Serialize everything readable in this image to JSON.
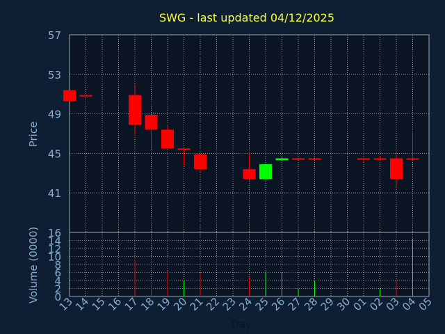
{
  "chart_data": {
    "type": "candlestick",
    "title": "SWG - last updated 04/12/2025",
    "xlabel": "Day",
    "price_ylabel": "Price",
    "volume_ylabel": "Volume (0000)",
    "x_ticks": [
      "13",
      "14",
      "15",
      "16",
      "17",
      "18",
      "19",
      "20",
      "21",
      "22",
      "23",
      "24",
      "25",
      "26",
      "27",
      "28",
      "29",
      "30",
      "01",
      "02",
      "03",
      "04",
      "05"
    ],
    "price_yticks": [
      41,
      45,
      49,
      53,
      57
    ],
    "price_ylim": [
      37,
      57
    ],
    "volume_yticks": [
      0,
      2,
      4,
      6,
      8,
      10,
      12,
      14,
      16
    ],
    "volume_ylim": [
      0,
      16
    ],
    "grid": true,
    "colors": {
      "background": "#0f1f33",
      "plot": "#0b1422",
      "up": "#00ff00",
      "down": "#ff0000",
      "grid": "#b9c3cc",
      "title": "#ffff33",
      "axis_text": "#8aaed0"
    },
    "candles": [
      {
        "day": "13",
        "open": 51.4,
        "high": 51.4,
        "low": 50.3,
        "close": 50.3
      },
      {
        "day": "14",
        "open": 50.9,
        "high": 50.9,
        "low": 50.8,
        "close": 50.9
      },
      {
        "day": "17",
        "open": 50.9,
        "high": 52.0,
        "low": 46.8,
        "close": 47.9
      },
      {
        "day": "18",
        "open": 48.9,
        "high": 48.9,
        "low": 45.4,
        "close": 47.4
      },
      {
        "day": "19",
        "open": 47.4,
        "high": 47.9,
        "low": 45.4,
        "close": 45.5
      },
      {
        "day": "20",
        "open": 45.5,
        "high": 45.5,
        "low": 43.8,
        "close": 45.5
      },
      {
        "day": "21",
        "open": 44.9,
        "high": 44.9,
        "low": 43.0,
        "close": 43.4
      },
      {
        "day": "24",
        "open": 43.4,
        "high": 45.0,
        "low": 42.3,
        "close": 42.4
      },
      {
        "day": "25",
        "open": 42.4,
        "high": 43.9,
        "low": 42.3,
        "close": 43.9
      },
      {
        "day": "26",
        "open": 44.3,
        "high": 44.6,
        "low": 44.2,
        "close": 44.5
      },
      {
        "day": "27",
        "open": 44.5,
        "high": 44.5,
        "low": 44.5,
        "close": 44.5
      },
      {
        "day": "28",
        "open": 44.5,
        "high": 44.5,
        "low": 44.4,
        "close": 44.5
      },
      {
        "day": "01",
        "open": 44.5,
        "high": 44.5,
        "low": 44.1,
        "close": 44.5
      },
      {
        "day": "02",
        "open": 44.5,
        "high": 44.8,
        "low": 44.3,
        "close": 44.5
      },
      {
        "day": "03",
        "open": 44.5,
        "high": 45.0,
        "low": 41.6,
        "close": 42.4
      },
      {
        "day": "04",
        "open": 44.5,
        "high": 47.3,
        "low": 44.5,
        "close": 44.5
      }
    ],
    "volume": [
      {
        "day": "17",
        "value": 9.2,
        "dir": "down"
      },
      {
        "day": "18",
        "value": 3.0,
        "dir": "down"
      },
      {
        "day": "19",
        "value": 6.5,
        "dir": "down"
      },
      {
        "day": "20",
        "value": 4.0,
        "dir": "up"
      },
      {
        "day": "21",
        "value": 5.8,
        "dir": "down"
      },
      {
        "day": "24",
        "value": 5.0,
        "dir": "down"
      },
      {
        "day": "25",
        "value": 6.2,
        "dir": "up"
      },
      {
        "day": "26",
        "value": 6.0,
        "dir": "up"
      },
      {
        "day": "27",
        "value": 1.8,
        "dir": "up"
      },
      {
        "day": "28",
        "value": 4.0,
        "dir": "up"
      },
      {
        "day": "02",
        "value": 2.0,
        "dir": "up"
      },
      {
        "day": "03",
        "value": 4.0,
        "dir": "down"
      },
      {
        "day": "04",
        "value": 14.5,
        "dir": "up"
      }
    ]
  }
}
